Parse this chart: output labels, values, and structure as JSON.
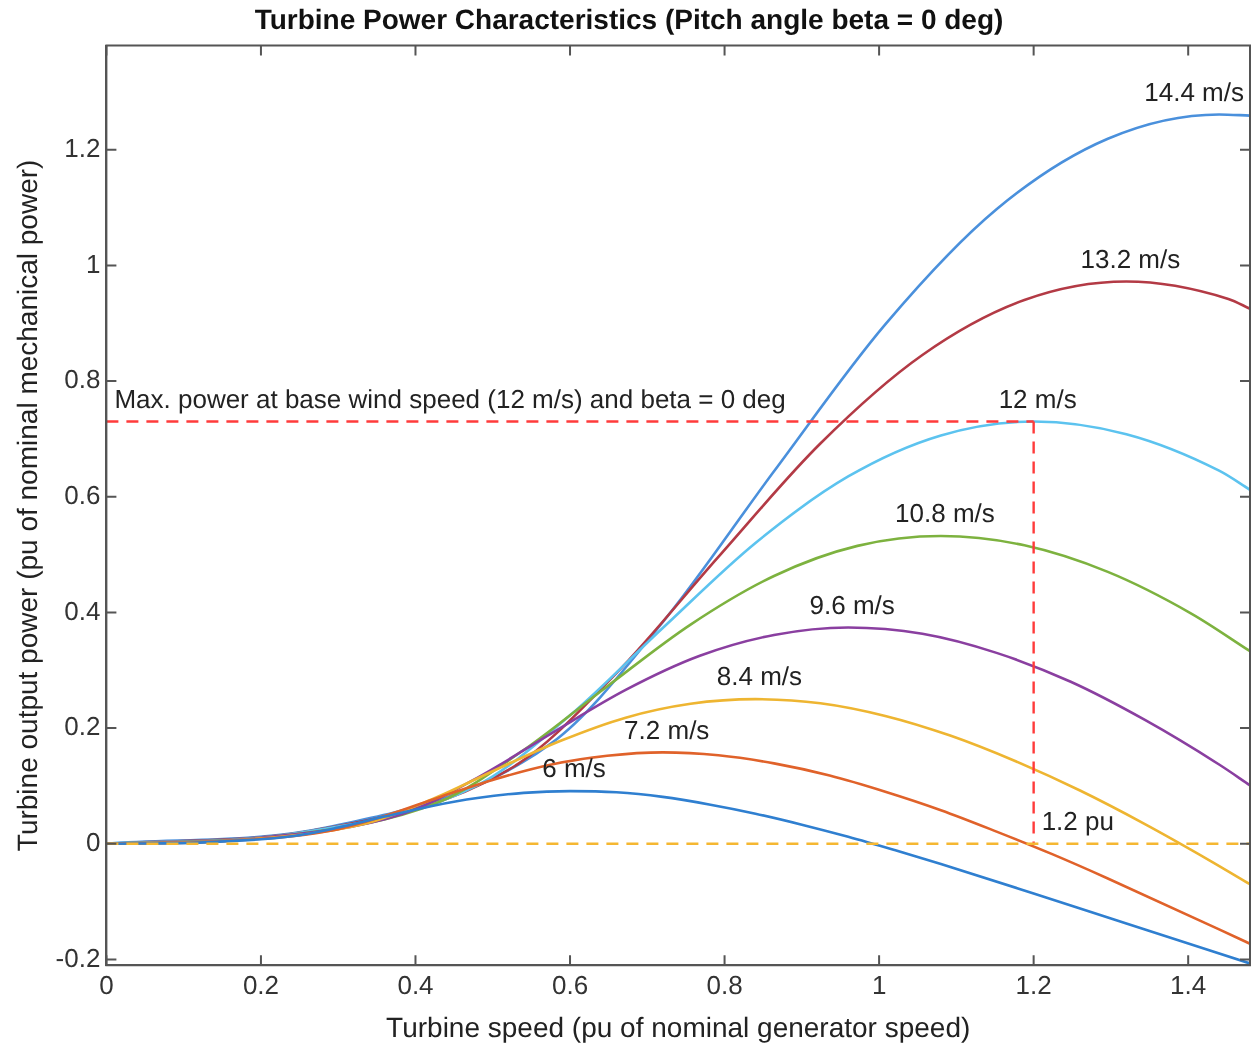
{
  "chart_data": {
    "type": "line",
    "title": "Turbine Power Characteristics (Pitch angle beta = 0 deg)",
    "xlabel": "Turbine speed (pu of nominal generator speed)",
    "ylabel": "Turbine output power (pu of nominal mechanical power)",
    "xlim": [
      0,
      1.48
    ],
    "xticks": [
      0,
      0.2,
      0.4,
      0.6,
      0.8,
      1,
      1.2,
      1.4
    ],
    "ylim": [
      -0.21,
      1.38
    ],
    "yticks": [
      -0.2,
      0,
      0.2,
      0.4,
      0.6,
      0.8,
      1,
      1.2
    ],
    "grid": false,
    "legend": false,
    "marker": "none",
    "line_style": "solid",
    "series": [
      {
        "name": "6 m/s",
        "color": "#2f7fd0",
        "x": [
          0,
          0.12,
          0.24,
          0.3,
          0.36,
          0.42,
          0.48,
          0.54,
          0.6,
          0.66,
          0.72,
          0.78,
          0.84,
          0.9,
          0.96,
          1.02,
          1.08,
          1.2,
          1.32,
          1.48
        ],
        "values": [
          0,
          0.002,
          0.013,
          0.028,
          0.047,
          0.065,
          0.079,
          0.088,
          0.091,
          0.089,
          0.081,
          0.068,
          0.052,
          0.033,
          0.012,
          -0.011,
          -0.035,
          -0.086,
          -0.138,
          -0.207
        ]
      },
      {
        "name": "7.2 m/s",
        "color": "#e0622a",
        "x": [
          0,
          0.144,
          0.288,
          0.36,
          0.432,
          0.504,
          0.576,
          0.648,
          0.72,
          0.792,
          0.864,
          0.936,
          1.008,
          1.08,
          1.152,
          1.224,
          1.296,
          1.44,
          1.48
        ],
        "values": [
          0,
          0.004,
          0.022,
          0.048,
          0.081,
          0.112,
          0.137,
          0.152,
          0.158,
          0.153,
          0.139,
          0.118,
          0.09,
          0.058,
          0.021,
          -0.018,
          -0.06,
          -0.148,
          -0.173
        ]
      },
      {
        "name": "8.4 m/s",
        "color": "#eeb531",
        "x": [
          0,
          0.168,
          0.336,
          0.42,
          0.504,
          0.588,
          0.672,
          0.756,
          0.84,
          0.924,
          1.008,
          1.092,
          1.176,
          1.26,
          1.344,
          1.428,
          1.48
        ],
        "values": [
          0,
          0.006,
          0.035,
          0.076,
          0.128,
          0.178,
          0.218,
          0.242,
          0.25,
          0.243,
          0.221,
          0.187,
          0.143,
          0.092,
          0.034,
          -0.029,
          -0.07
        ]
      },
      {
        "name": "9.6 m/s",
        "color": "#8a3fa0",
        "x": [
          0,
          0.192,
          0.384,
          0.48,
          0.576,
          0.672,
          0.768,
          0.864,
          0.96,
          1.056,
          1.152,
          1.248,
          1.344,
          1.44,
          1.48
        ],
        "values": [
          0,
          0.009,
          0.052,
          0.114,
          0.191,
          0.266,
          0.325,
          0.361,
          0.374,
          0.363,
          0.33,
          0.28,
          0.214,
          0.137,
          0.101
        ]
      },
      {
        "name": "10.8 m/s",
        "color": "#7db23f",
        "x": [
          0,
          0.216,
          0.432,
          0.54,
          0.648,
          0.756,
          0.864,
          0.972,
          1.08,
          1.188,
          1.296,
          1.404,
          1.48
        ],
        "values": [
          0,
          0.012,
          0.073,
          0.162,
          0.272,
          0.379,
          0.463,
          0.515,
          0.532,
          0.516,
          0.47,
          0.398,
          0.333
        ]
      },
      {
        "name": "12 m/s",
        "color": "#5cc3ef",
        "x": [
          0,
          0.24,
          0.48,
          0.6,
          0.72,
          0.84,
          0.96,
          1.08,
          1.2,
          1.32,
          1.44,
          1.48
        ],
        "values": [
          0,
          0.017,
          0.101,
          0.222,
          0.373,
          0.52,
          0.635,
          0.706,
          0.73,
          0.708,
          0.645,
          0.612
        ]
      },
      {
        "name": "13.2 m/s",
        "color": "#b33a45",
        "x": [
          0,
          0.264,
          0.528,
          0.66,
          0.792,
          0.924,
          1.056,
          1.188,
          1.32,
          1.452,
          1.48
        ],
        "values": [
          0,
          0.022,
          0.134,
          0.295,
          0.496,
          0.692,
          0.845,
          0.94,
          0.972,
          0.942,
          0.925
        ]
      },
      {
        "name": "14.4 m/s",
        "color": "#4a90dc",
        "x": [
          0,
          0.288,
          0.576,
          0.72,
          0.864,
          1.008,
          1.152,
          1.296,
          1.44,
          1.48
        ],
        "values": [
          0,
          0.029,
          0.174,
          0.383,
          0.644,
          0.898,
          1.097,
          1.219,
          1.261,
          1.259
        ]
      }
    ],
    "ref_lines": [
      {
        "axis": "y",
        "value": 0.73,
        "color": "#ff3b3b",
        "line_style": "dashed"
      },
      {
        "axis": "x",
        "value": 1.2,
        "label": "1.2 pu",
        "color": "#ff3b3b",
        "line_style": "dashed"
      },
      {
        "axis": "y",
        "value": 0,
        "color": "#f5b731",
        "line_style": "dashed"
      }
    ],
    "annotations": [
      "Max. power at base wind speed (12 m/s) and beta = 0 deg"
    ]
  }
}
